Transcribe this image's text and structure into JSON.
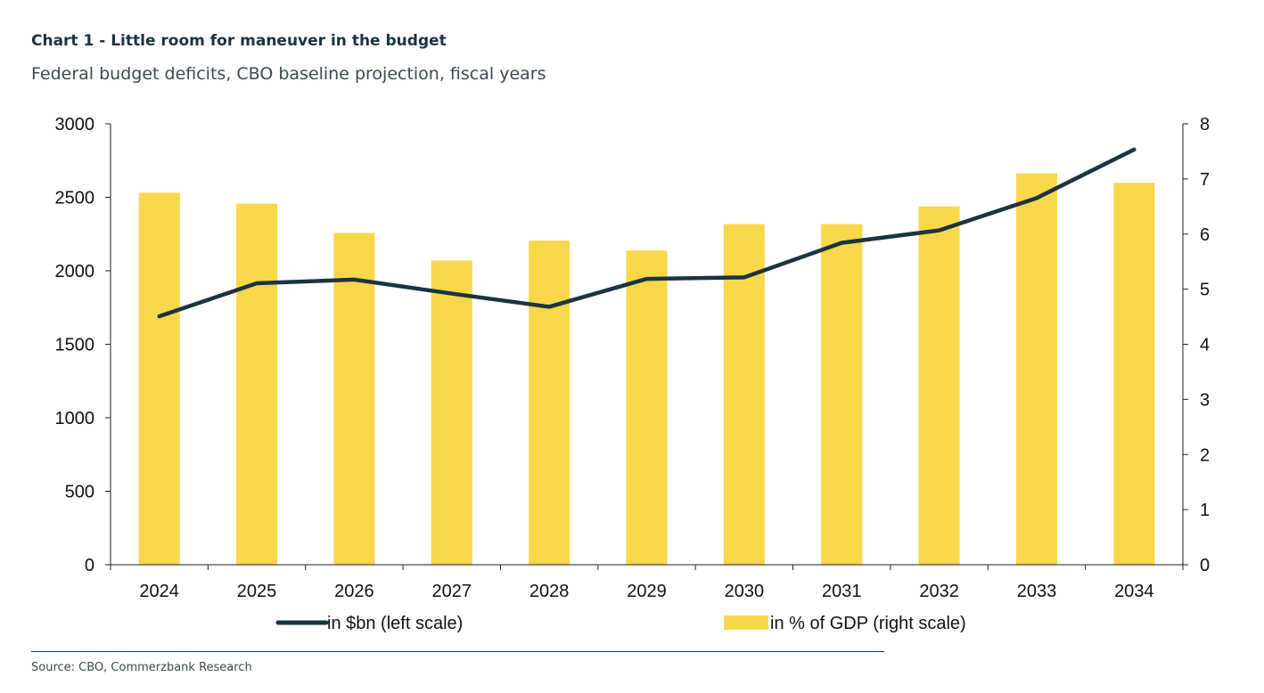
{
  "chart_data": {
    "type": "bar+line",
    "title": "Chart 1 - Little room for maneuver in the budget",
    "subtitle": "Federal budget deficits, CBO baseline projection, fiscal years",
    "categories": [
      "2024",
      "2025",
      "2026",
      "2027",
      "2028",
      "2029",
      "2030",
      "2031",
      "2032",
      "2033",
      "2034"
    ],
    "series": [
      {
        "name": "in $bn (left scale)",
        "type": "line",
        "axis": "left",
        "color": "#1c3340",
        "values": [
          1690,
          1915,
          1940,
          1845,
          1755,
          1945,
          1955,
          2190,
          2275,
          2495,
          2825
        ]
      },
      {
        "name": "in % of GDP (right scale)",
        "type": "bar",
        "axis": "right",
        "color": "#f7d84b",
        "values": [
          6.75,
          6.55,
          6.02,
          5.52,
          5.88,
          5.7,
          6.18,
          6.18,
          6.5,
          7.1,
          6.93
        ]
      }
    ],
    "y_left": {
      "min": 0,
      "max": 3000,
      "ticks": [
        0,
        500,
        1000,
        1500,
        2000,
        2500,
        3000
      ]
    },
    "y_right": {
      "min": 0,
      "max": 8,
      "ticks": [
        0,
        1,
        2,
        3,
        4,
        5,
        6,
        7,
        8
      ]
    },
    "grid": false,
    "legend": "bottom"
  },
  "source": "Source: CBO, Commerzbank Research"
}
